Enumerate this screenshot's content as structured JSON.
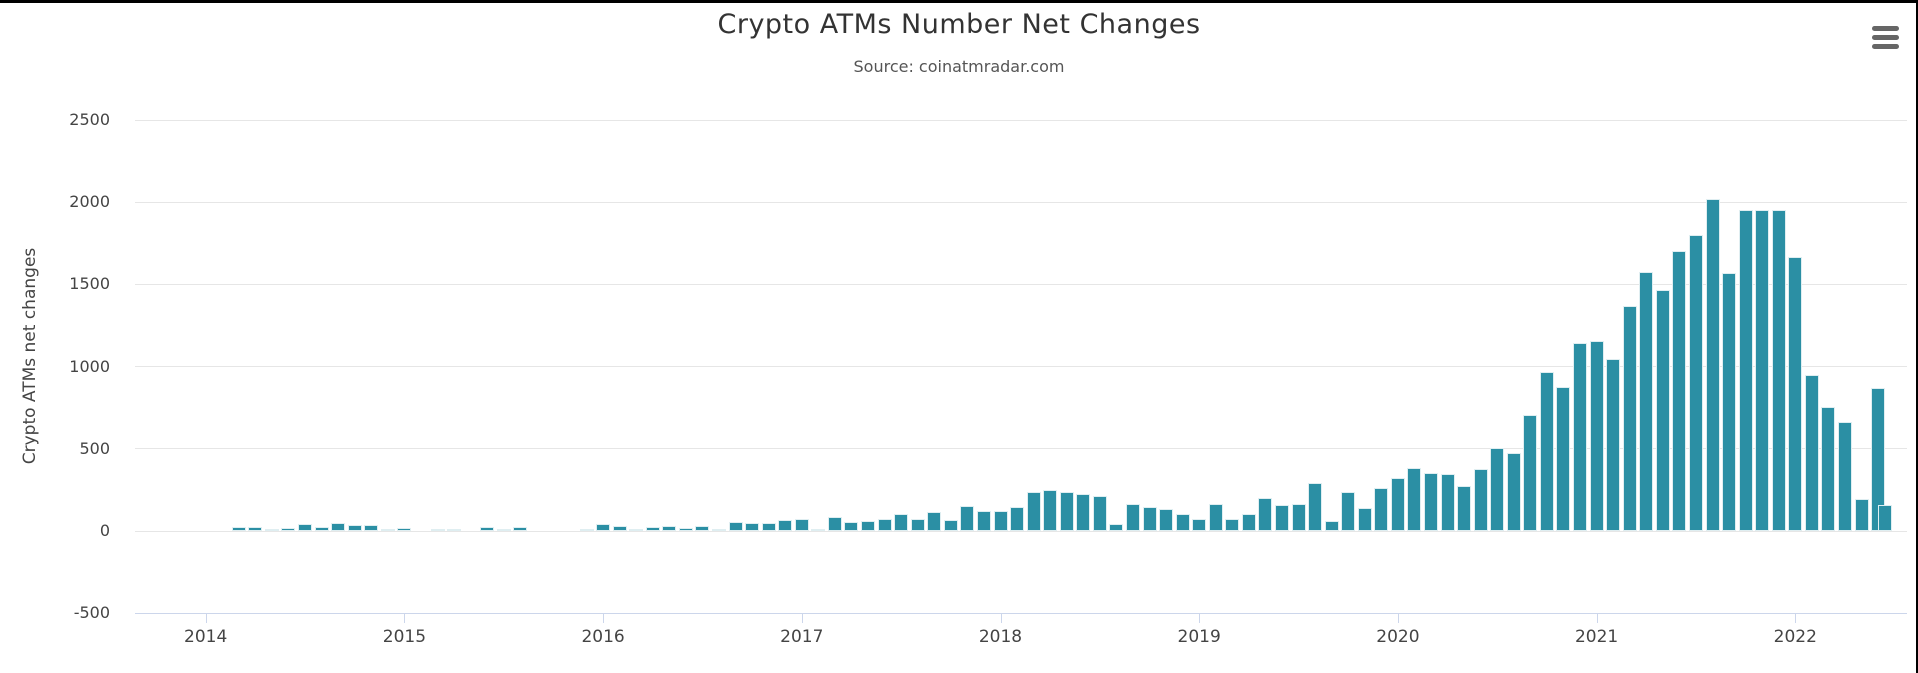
{
  "chart": {
    "title": "Crypto ATMs Number Net Changes",
    "subtitle": "Source: coinatmradar.com",
    "y_axis_title": "Crypto ATMs net changes",
    "menu_icon": "hamburger-menu-icon",
    "colors": {
      "bar": "#2b8fa4",
      "grid": "#e6e6e6",
      "axis_line": "#ccd6eb",
      "title_text": "#333333",
      "label_text": "#444444",
      "menu_icon": "#666666"
    }
  },
  "chart_data": {
    "type": "bar",
    "title": "Crypto ATMs Number Net Changes",
    "subtitle": "Source: coinatmradar.com",
    "xlabel": "",
    "ylabel": "Crypto ATMs net changes",
    "ylim": [
      -500,
      2500
    ],
    "y_ticks": [
      2500,
      2000,
      1500,
      1000,
      500,
      0,
      -500
    ],
    "x_ticks": [
      "2014",
      "2015",
      "2016",
      "2017",
      "2018",
      "2019",
      "2020",
      "2021",
      "2022"
    ],
    "grid": true,
    "legend": false,
    "series": [
      {
        "name": "Crypto ATMs net changes",
        "points": [
          {
            "month": "2014-03",
            "value": 23
          },
          {
            "month": "2014-04",
            "value": 23
          },
          {
            "month": "2014-05",
            "value": 12
          },
          {
            "month": "2014-06",
            "value": 20
          },
          {
            "month": "2014-07",
            "value": 45
          },
          {
            "month": "2014-08",
            "value": 23
          },
          {
            "month": "2014-09",
            "value": 48
          },
          {
            "month": "2014-10",
            "value": 35
          },
          {
            "month": "2014-11",
            "value": 35
          },
          {
            "month": "2014-12",
            "value": 8
          },
          {
            "month": "2015-01",
            "value": 20
          },
          {
            "month": "2015-02",
            "value": 0
          },
          {
            "month": "2015-03",
            "value": 12
          },
          {
            "month": "2015-04",
            "value": 12
          },
          {
            "month": "2015-05",
            "value": 0
          },
          {
            "month": "2015-06",
            "value": 22
          },
          {
            "month": "2015-07",
            "value": 10
          },
          {
            "month": "2015-08",
            "value": 24
          },
          {
            "month": "2015-09",
            "value": 0
          },
          {
            "month": "2015-10",
            "value": 0
          },
          {
            "month": "2015-11",
            "value": 0
          },
          {
            "month": "2015-12",
            "value": 14
          },
          {
            "month": "2016-01",
            "value": 45
          },
          {
            "month": "2016-02",
            "value": 30
          },
          {
            "month": "2016-03",
            "value": 6
          },
          {
            "month": "2016-04",
            "value": 26
          },
          {
            "month": "2016-05",
            "value": 30
          },
          {
            "month": "2016-06",
            "value": 18
          },
          {
            "month": "2016-07",
            "value": 30
          },
          {
            "month": "2016-08",
            "value": 14
          },
          {
            "month": "2016-09",
            "value": 55
          },
          {
            "month": "2016-10",
            "value": 47
          },
          {
            "month": "2016-11",
            "value": 47
          },
          {
            "month": "2016-12",
            "value": 65
          },
          {
            "month": "2017-01",
            "value": 73
          },
          {
            "month": "2017-02",
            "value": 14
          },
          {
            "month": "2017-03",
            "value": 85
          },
          {
            "month": "2017-04",
            "value": 57
          },
          {
            "month": "2017-05",
            "value": 63
          },
          {
            "month": "2017-06",
            "value": 75
          },
          {
            "month": "2017-07",
            "value": 102
          },
          {
            "month": "2017-08",
            "value": 73
          },
          {
            "month": "2017-09",
            "value": 117
          },
          {
            "month": "2017-10",
            "value": 69
          },
          {
            "month": "2017-11",
            "value": 154
          },
          {
            "month": "2017-12",
            "value": 124
          },
          {
            "month": "2018-01",
            "value": 124
          },
          {
            "month": "2018-02",
            "value": 146
          },
          {
            "month": "2018-03",
            "value": 237
          },
          {
            "month": "2018-04",
            "value": 249
          },
          {
            "month": "2018-05",
            "value": 237
          },
          {
            "month": "2018-06",
            "value": 227
          },
          {
            "month": "2018-07",
            "value": 213
          },
          {
            "month": "2018-08",
            "value": 41
          },
          {
            "month": "2018-09",
            "value": 164
          },
          {
            "month": "2018-10",
            "value": 144
          },
          {
            "month": "2018-11",
            "value": 134
          },
          {
            "month": "2018-12",
            "value": 101
          },
          {
            "month": "2019-01",
            "value": 72
          },
          {
            "month": "2019-02",
            "value": 166
          },
          {
            "month": "2019-03",
            "value": 75
          },
          {
            "month": "2019-04",
            "value": 104
          },
          {
            "month": "2019-05",
            "value": 203
          },
          {
            "month": "2019-06",
            "value": 158
          },
          {
            "month": "2019-07",
            "value": 165
          },
          {
            "month": "2019-08",
            "value": 290
          },
          {
            "month": "2019-09",
            "value": 61
          },
          {
            "month": "2019-10",
            "value": 237
          },
          {
            "month": "2019-11",
            "value": 142
          },
          {
            "month": "2019-12",
            "value": 260
          },
          {
            "month": "2020-01",
            "value": 324
          },
          {
            "month": "2020-02",
            "value": 381
          },
          {
            "month": "2020-03",
            "value": 355
          },
          {
            "month": "2020-04",
            "value": 347
          },
          {
            "month": "2020-05",
            "value": 274
          },
          {
            "month": "2020-06",
            "value": 377
          },
          {
            "month": "2020-07",
            "value": 503
          },
          {
            "month": "2020-08",
            "value": 477
          },
          {
            "month": "2020-09",
            "value": 706
          },
          {
            "month": "2020-10",
            "value": 970
          },
          {
            "month": "2020-11",
            "value": 878
          },
          {
            "month": "2020-12",
            "value": 1142
          },
          {
            "month": "2021-01",
            "value": 1156
          },
          {
            "month": "2021-02",
            "value": 1044
          },
          {
            "month": "2021-03",
            "value": 1369
          },
          {
            "month": "2021-04",
            "value": 1577
          },
          {
            "month": "2021-05",
            "value": 1466
          },
          {
            "month": "2021-06",
            "value": 1705
          },
          {
            "month": "2021-07",
            "value": 1801
          },
          {
            "month": "2021-08",
            "value": 2018
          },
          {
            "month": "2021-09",
            "value": 1571
          },
          {
            "month": "2021-10",
            "value": 1953
          },
          {
            "month": "2021-11",
            "value": 1953
          },
          {
            "month": "2021-12",
            "value": 1953
          },
          {
            "month": "2022-01",
            "value": 1669
          },
          {
            "month": "2022-02",
            "value": 949
          },
          {
            "month": "2022-03",
            "value": 752
          },
          {
            "month": "2022-04",
            "value": 665
          },
          {
            "month": "2022-05",
            "value": 193
          },
          {
            "month": "2022-06",
            "value": 868
          },
          {
            "month": "2022-07",
            "value": 158
          }
        ]
      }
    ]
  }
}
